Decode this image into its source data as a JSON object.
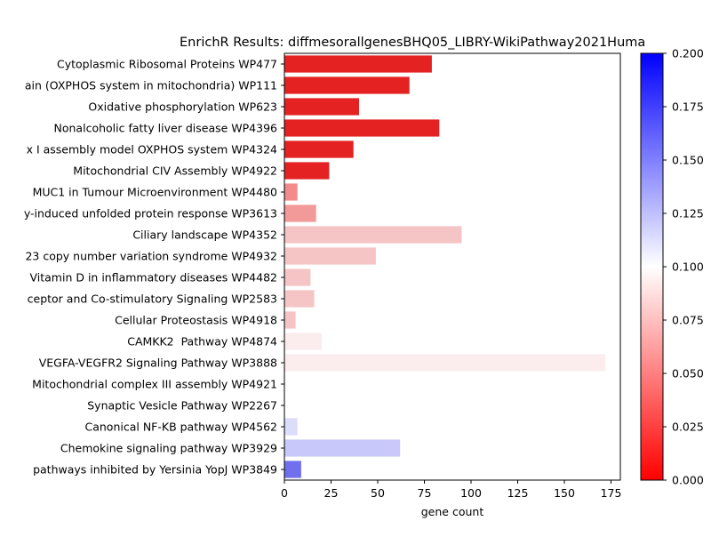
{
  "chart_data": {
    "type": "bar",
    "orientation": "horizontal",
    "title": "EnrichR Results: diffmesorallgenesBHQ05_LIBRY-WikiPathway2021Huma",
    "xlabel": "gene count",
    "ylabel": "",
    "xlim": [
      0,
      180
    ],
    "xticks": [
      0,
      25,
      50,
      75,
      100,
      125,
      150,
      175
    ],
    "grid": false,
    "categories": [
      "Cytoplasmic Ribosomal Proteins WP477",
      "ain (OXPHOS system in mitochondria) WP111",
      "Oxidative phosphorylation WP623",
      "Nonalcoholic fatty liver disease WP4396",
      "x I assembly model OXPHOS system WP4324",
      "Mitochondrial CIV Assembly WP4922",
      " MUC1 in Tumour Microenvironment WP4480",
      "y-induced unfolded protein response WP3613",
      "Ciliary landscape WP4352",
      "23 copy number variation syndrome WP4932",
      "Vitamin D in inflammatory diseases WP4482",
      "ceptor and Co-stimulatory Signaling WP2583",
      "Cellular Proteostasis WP4918",
      "CAMKK2  Pathway WP4874",
      "VEGFA-VEGFR2 Signaling Pathway WP3888",
      "Mitochondrial complex III assembly WP4921",
      "Synaptic Vesicle Pathway WP2267",
      "Canonical NF-KB pathway WP4562",
      "Chemokine signaling pathway WP3929",
      " pathways inhibited by Yersinia YopJ WP3849"
    ],
    "values": [
      79,
      67,
      40,
      83,
      37,
      24,
      7,
      17,
      95,
      49,
      14,
      16,
      6,
      20,
      172,
      0,
      0,
      7,
      62,
      9
    ],
    "adj_pvalue": [
      0.0002,
      0.0003,
      0.0004,
      0.0005,
      0.0006,
      0.0008,
      0.06,
      0.064,
      0.082,
      0.083,
      0.084,
      0.085,
      0.086,
      0.095,
      0.097,
      0.1,
      0.1,
      0.112,
      0.12,
      0.16
    ],
    "colors": [
      "#e42222",
      "#e42222",
      "#e42222",
      "#e42222",
      "#e42222",
      "#e42222",
      "#f28c8c",
      "#f29999",
      "#f5c5c5",
      "#f5c5c5",
      "#f5c5c5",
      "#f5c5c5",
      "#f5c5c5",
      "#fbeded",
      "#fbeded",
      "#ffffff",
      "#ffffff",
      "#dcdcfb",
      "#c8c8fa",
      "#7070ef"
    ],
    "colorbar": {
      "vmin": 0.0,
      "vmax": 0.2,
      "ticks": [
        "0.000",
        "0.025",
        "0.050",
        "0.075",
        "0.100",
        "0.125",
        "0.150",
        "0.175",
        "0.200"
      ],
      "low_color": "#ff0000",
      "mid_color": "#ffffff",
      "high_color": "#0000ff"
    }
  }
}
